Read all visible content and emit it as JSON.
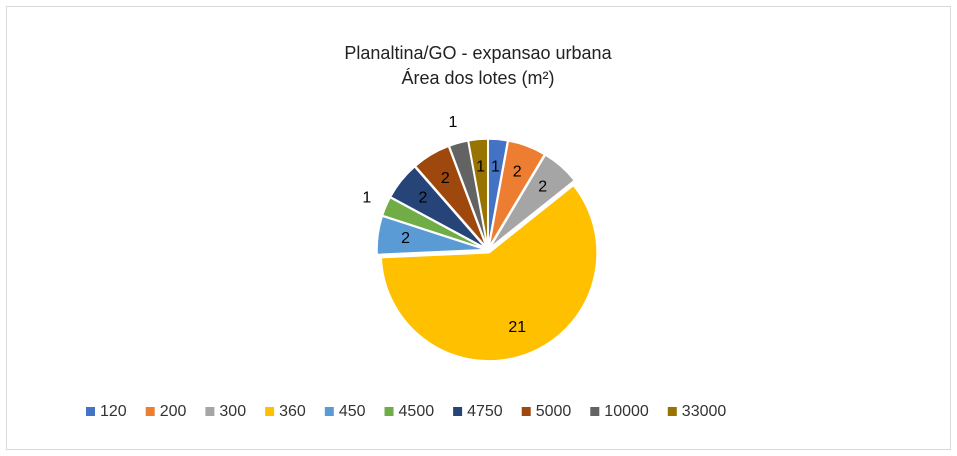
{
  "chart_data": {
    "type": "pie",
    "title": "Planaltina/GO - expansao urbana",
    "subtitle": "Área dos lotes (m²)",
    "categories": [
      "120",
      "200",
      "300",
      "360",
      "450",
      "4500",
      "4750",
      "5000",
      "10000",
      "33000"
    ],
    "values": [
      1,
      2,
      2,
      21,
      2,
      1,
      2,
      2,
      1,
      1
    ],
    "colors": [
      "#4472c4",
      "#ed7d31",
      "#a5a5a5",
      "#ffc000",
      "#5b9bd5",
      "#70ad47",
      "#264478",
      "#9e480e",
      "#636363",
      "#997300"
    ],
    "legend": "bottom"
  }
}
